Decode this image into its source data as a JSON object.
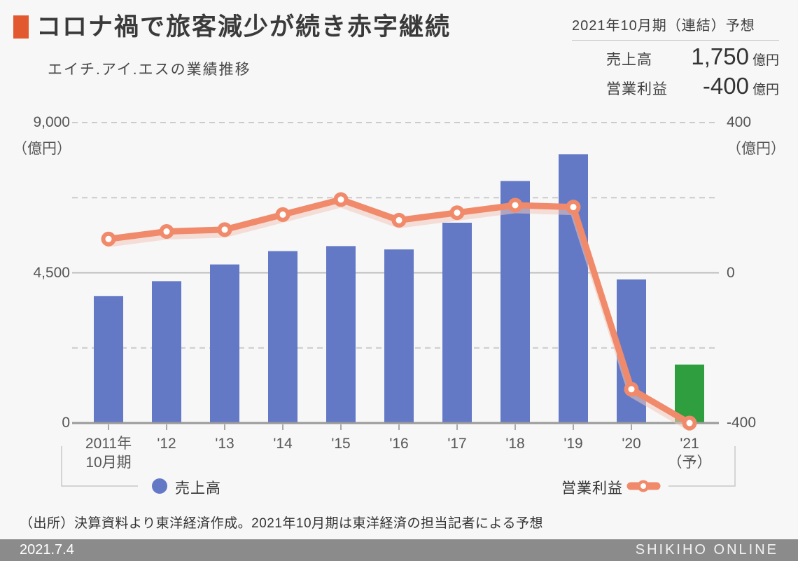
{
  "header": {
    "title": "コロナ禍で旅客減少が続き赤字継続",
    "subtitle": "エイチ.アイ.エスの業績推移"
  },
  "forecast": {
    "heading": "2021年10月期（連結）予想",
    "rows": [
      {
        "label": "売上高",
        "value": "1,750",
        "unit": "億円"
      },
      {
        "label": "営業利益",
        "value": "-400",
        "unit": "億円"
      }
    ]
  },
  "chart_data": {
    "type": "bar",
    "title": "エイチ.アイ.エスの業績推移",
    "categories": [
      "2011年\n10月期",
      "'12",
      "'13",
      "'14",
      "'15",
      "'16",
      "'17",
      "'18",
      "'19",
      "'20",
      "'21\n（予）"
    ],
    "series": [
      {
        "name": "売上高",
        "type": "bar",
        "axis": "left",
        "unit": "億円",
        "values": [
          3800,
          4250,
          4750,
          5150,
          5300,
          5200,
          6000,
          7250,
          8050,
          4300,
          1750
        ],
        "color": "#6379c6",
        "last_bar_color": "#2e9e3e"
      },
      {
        "name": "営業利益",
        "type": "line",
        "axis": "right",
        "unit": "億円",
        "values": [
          90,
          110,
          115,
          155,
          195,
          140,
          160,
          180,
          175,
          -310,
          -400
        ],
        "color": "#f08a6a"
      }
    ],
    "left_axis": {
      "ticks": [
        "9,000",
        "4,500",
        "0"
      ],
      "unit": "（億円）",
      "range": [
        0,
        9000
      ]
    },
    "right_axis": {
      "ticks": [
        "400",
        "0",
        "-400"
      ],
      "unit": "（億円）",
      "range": [
        -400,
        400
      ]
    },
    "gridlines": {
      "dashed_left_values": [
        9000,
        6750,
        2250
      ],
      "solid_left_values": [
        4500
      ],
      "axis_left_value": 0
    },
    "legend": [
      {
        "label": "売上高",
        "marker": "circle-icon"
      },
      {
        "label": "営業利益",
        "marker": "line-dot-icon"
      }
    ]
  },
  "source": "（出所）決算資料より東洋経済作成。2021年10月期は東洋経済の担当記者による予想",
  "footer": {
    "date": "2021.7.4",
    "brand": "SHIKIHO ONLINE"
  },
  "colors": {
    "accent_square": "#e2592f",
    "bar_blue": "#6379c6",
    "bar_green": "#2e9e3e",
    "line_orange": "#f08a6a",
    "background": "#f7f7f8",
    "footer_bar": "#8b8b8b"
  }
}
